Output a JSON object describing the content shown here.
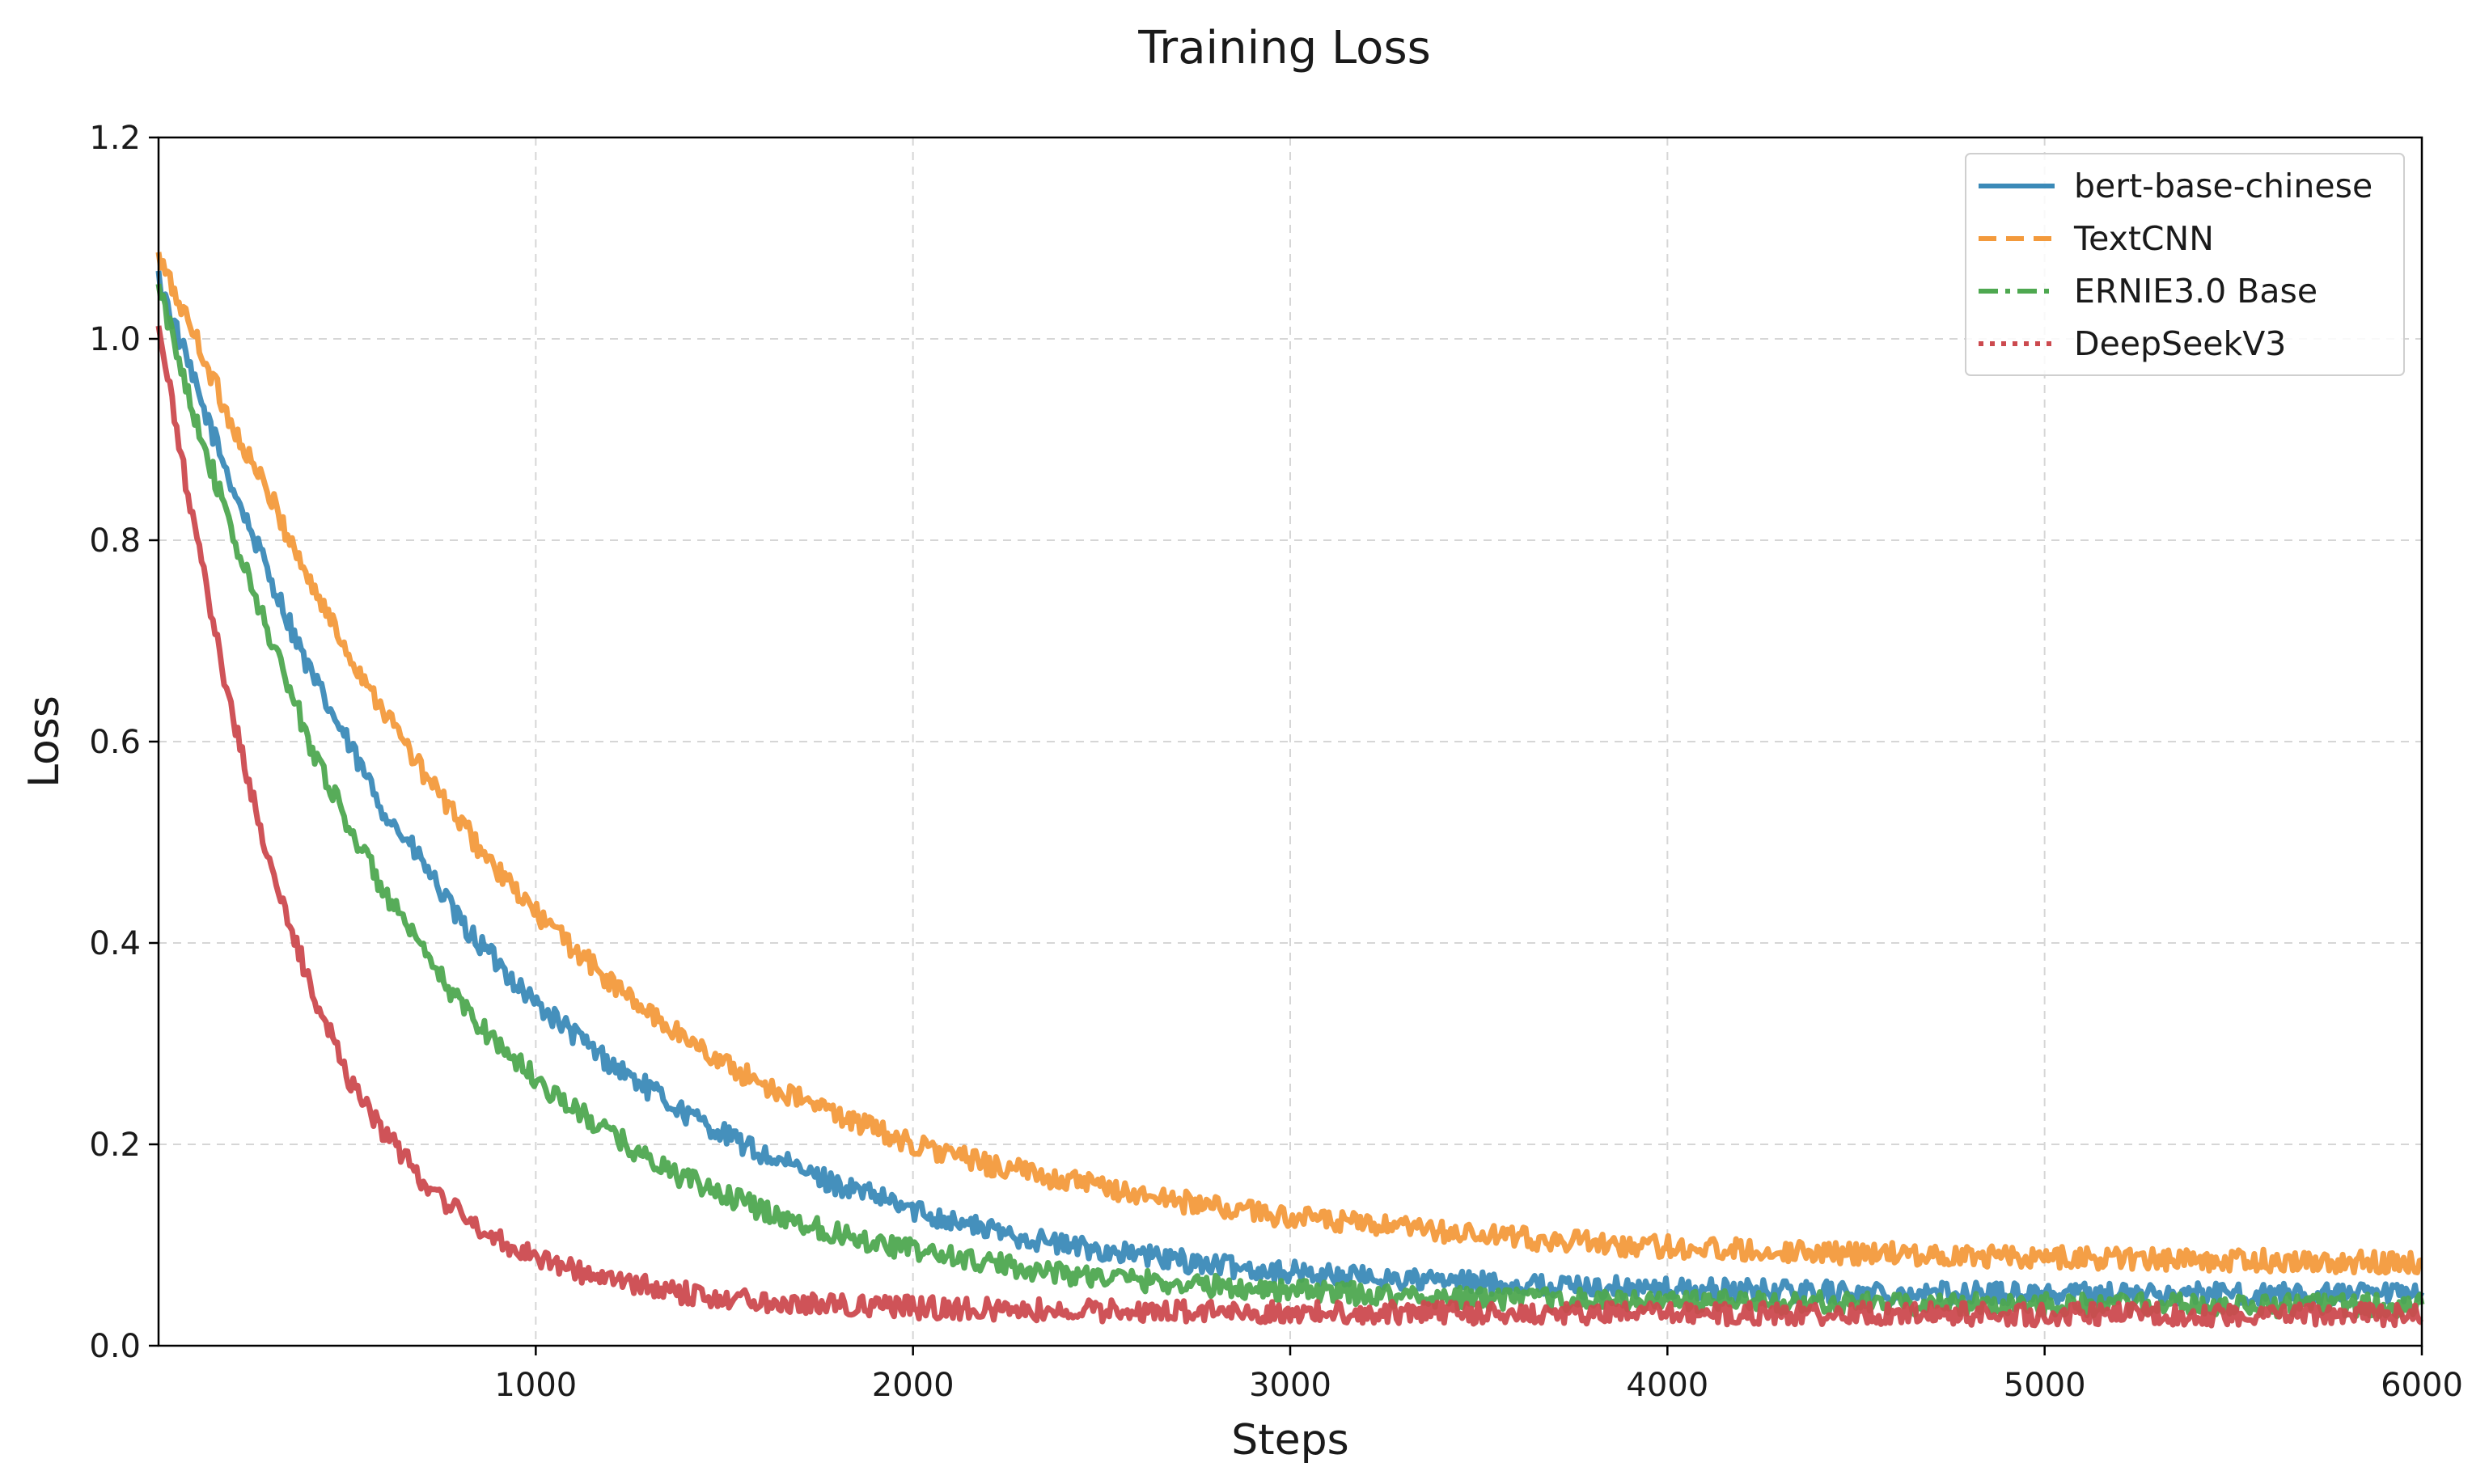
{
  "chart_data": {
    "type": "line",
    "title": "Training Loss",
    "xlabel": "Steps",
    "ylabel": "Loss",
    "xlim": [
      0,
      6000
    ],
    "ylim": [
      0,
      1.2
    ],
    "xticks": [
      1000,
      2000,
      3000,
      4000,
      5000,
      6000
    ],
    "xtick_labels": [
      "1000",
      "2000",
      "3000",
      "4000",
      "5000",
      "6000"
    ],
    "yticks": [
      0.0,
      0.2,
      0.4,
      0.6,
      0.8,
      1.0,
      1.2
    ],
    "ytick_labels": [
      "0.0",
      "0.2",
      "0.4",
      "0.6",
      "0.8",
      "1.0",
      "1.2"
    ],
    "grid": true,
    "legend_position": "top-right",
    "series": [
      {
        "name": "bert-base-chinese",
        "color": "#3b8ab8",
        "style": "solid",
        "x": [
          0,
          100,
          200,
          300,
          400,
          500,
          600,
          700,
          800,
          900,
          1000,
          1100,
          1200,
          1300,
          1400,
          1500,
          1600,
          1700,
          1800,
          1900,
          2000,
          2200,
          2400,
          2600,
          2800,
          3000,
          3200,
          3400,
          3600,
          3800,
          4000,
          4500,
          5000,
          5500,
          6000
        ],
        "y": [
          1.06,
          0.95,
          0.85,
          0.76,
          0.67,
          0.6,
          0.53,
          0.48,
          0.42,
          0.38,
          0.34,
          0.31,
          0.28,
          0.255,
          0.23,
          0.21,
          0.19,
          0.175,
          0.16,
          0.148,
          0.135,
          0.115,
          0.1,
          0.09,
          0.08,
          0.073,
          0.068,
          0.064,
          0.061,
          0.058,
          0.056,
          0.053,
          0.052,
          0.051,
          0.05
        ]
      },
      {
        "name": "TextCNN",
        "color": "#f39a3c",
        "style": "dashed",
        "x": [
          0,
          100,
          200,
          300,
          400,
          500,
          600,
          700,
          800,
          900,
          1000,
          1100,
          1200,
          1300,
          1400,
          1500,
          1600,
          1700,
          1800,
          1900,
          2000,
          2200,
          2400,
          2600,
          2800,
          3000,
          3200,
          3400,
          3600,
          3800,
          4000,
          4500,
          5000,
          5500,
          6000
        ],
        "y": [
          1.08,
          1.0,
          0.91,
          0.84,
          0.76,
          0.69,
          0.63,
          0.57,
          0.52,
          0.47,
          0.43,
          0.395,
          0.36,
          0.33,
          0.305,
          0.28,
          0.26,
          0.245,
          0.23,
          0.215,
          0.2,
          0.18,
          0.165,
          0.15,
          0.138,
          0.128,
          0.12,
          0.113,
          0.107,
          0.102,
          0.098,
          0.092,
          0.088,
          0.085,
          0.082
        ]
      },
      {
        "name": "ERNIE3.0 Base",
        "color": "#4ea850",
        "style": "dashdot",
        "x": [
          0,
          100,
          200,
          300,
          400,
          500,
          600,
          700,
          800,
          900,
          1000,
          1100,
          1200,
          1300,
          1400,
          1500,
          1600,
          1700,
          1800,
          1900,
          2000,
          2200,
          2400,
          2600,
          2800,
          3000,
          3200,
          3400,
          3600,
          3800,
          4000,
          4500,
          5000,
          5500,
          6000
        ],
        "y": [
          1.05,
          0.92,
          0.8,
          0.7,
          0.6,
          0.52,
          0.45,
          0.39,
          0.34,
          0.3,
          0.265,
          0.235,
          0.21,
          0.185,
          0.165,
          0.15,
          0.135,
          0.122,
          0.112,
          0.103,
          0.095,
          0.082,
          0.072,
          0.065,
          0.059,
          0.055,
          0.051,
          0.048,
          0.046,
          0.045,
          0.044,
          0.042,
          0.041,
          0.04,
          0.04
        ]
      },
      {
        "name": "DeepSeekV3",
        "color": "#cc4a4f",
        "style": "dotted",
        "x": [
          0,
          100,
          200,
          300,
          400,
          500,
          600,
          700,
          800,
          900,
          1000,
          1100,
          1200,
          1300,
          1400,
          1500,
          1600,
          1700,
          1800,
          1900,
          2000,
          2200,
          2400,
          2600,
          2800,
          3000,
          3200,
          3400,
          3600,
          3800,
          4000,
          4500,
          5000,
          5500,
          6000
        ],
        "y": [
          1.01,
          0.8,
          0.62,
          0.47,
          0.36,
          0.27,
          0.21,
          0.165,
          0.13,
          0.105,
          0.09,
          0.075,
          0.065,
          0.058,
          0.052,
          0.048,
          0.045,
          0.043,
          0.041,
          0.039,
          0.038,
          0.036,
          0.035,
          0.034,
          0.034,
          0.033,
          0.033,
          0.033,
          0.032,
          0.032,
          0.032,
          0.032,
          0.031,
          0.031,
          0.031
        ]
      }
    ]
  }
}
